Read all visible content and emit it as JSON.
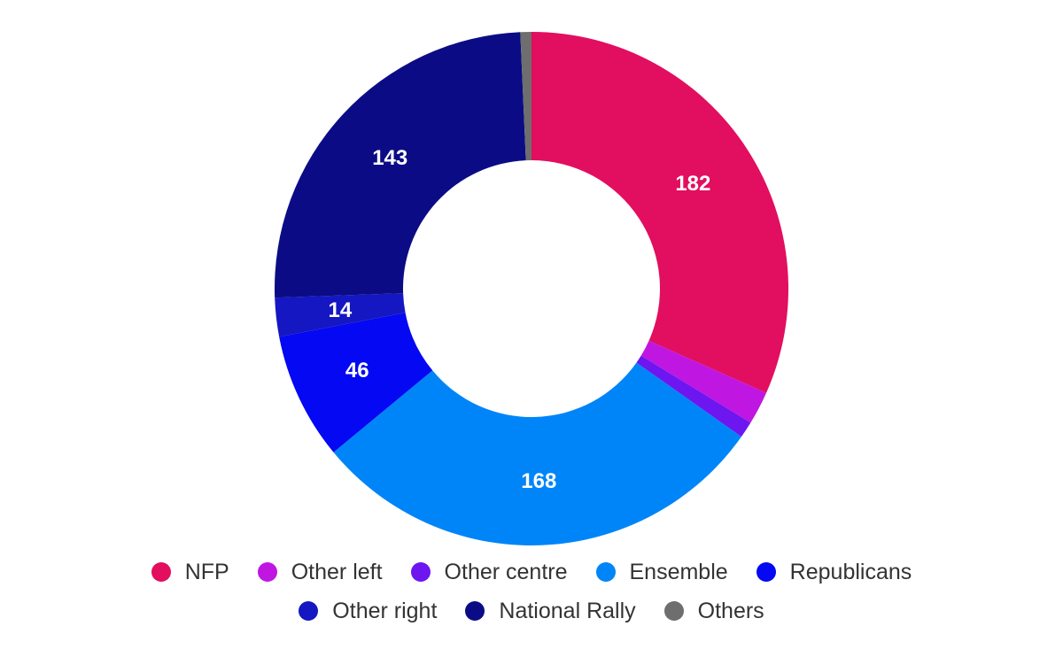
{
  "chart_data": {
    "type": "pie",
    "donut": true,
    "categories": [
      "NFP",
      "Other left",
      "Other centre",
      "Ensemble",
      "Republicans",
      "Other right",
      "National Rally",
      "Others"
    ],
    "values": [
      182,
      12,
      6,
      168,
      46,
      14,
      143,
      4
    ],
    "colors": [
      "#e20e5f",
      "#c016e2",
      "#6d16f0",
      "#0085f8",
      "#0508f2",
      "#1417c2",
      "#0b0c85",
      "#6e6e6e"
    ],
    "data_labels": [
      "182",
      "",
      "",
      "168",
      "46",
      "14",
      "143",
      ""
    ],
    "legend": "bottom"
  }
}
